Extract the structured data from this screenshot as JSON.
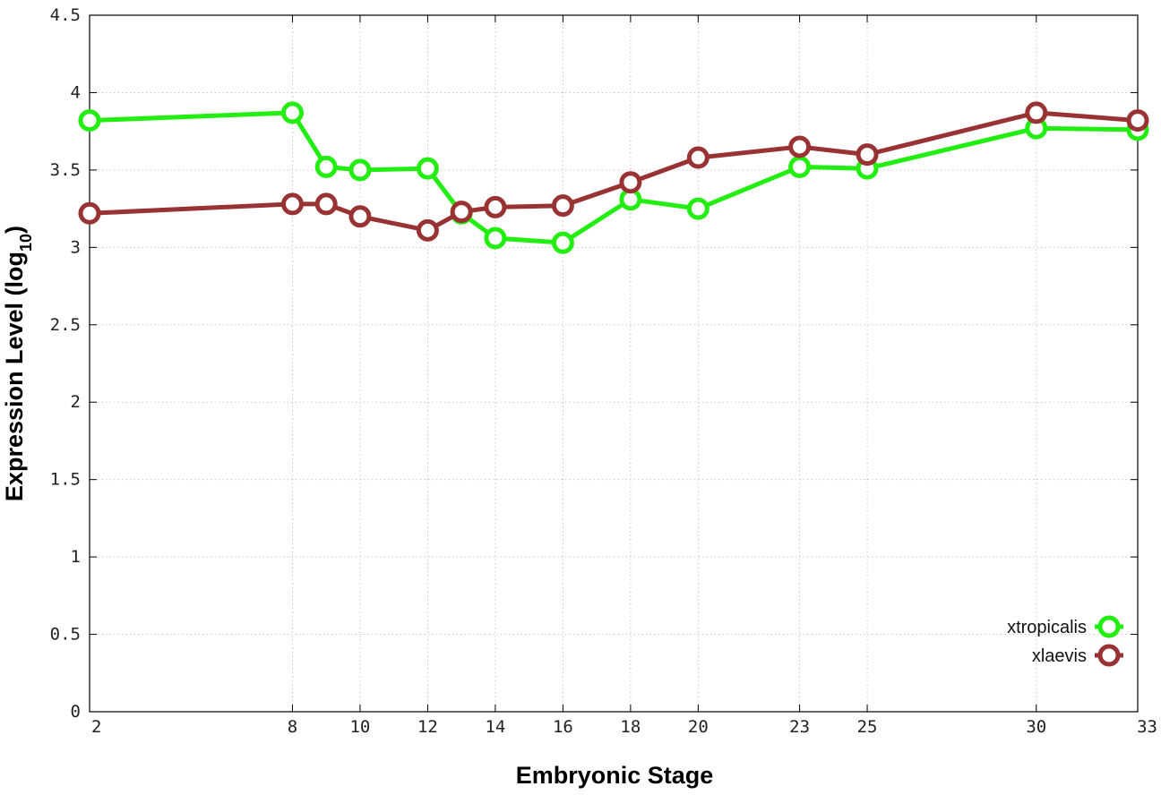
{
  "chart_data": {
    "type": "line",
    "title": "",
    "xlabel": "Embryonic Stage",
    "ylabel_main": "Expression Level (log",
    "ylabel_sub": "10",
    "ylabel_close": ")",
    "x_ticks": [
      2,
      8,
      10,
      12,
      14,
      16,
      18,
      20,
      23,
      25,
      30,
      33
    ],
    "y_ticks": [
      "0",
      "0.5",
      "1",
      "1.5",
      "2",
      "2.5",
      "3",
      "3.5",
      "4",
      "4.5"
    ],
    "xlim": [
      2,
      33
    ],
    "ylim": [
      0,
      4.5
    ],
    "grid": true,
    "legend_position": "bottom-right",
    "series": [
      {
        "name": "xtropicalis",
        "color": "#22ee11",
        "x": [
          2,
          8,
          9,
          10,
          12,
          13,
          14,
          16,
          18,
          20,
          23,
          25,
          30,
          33
        ],
        "y": [
          3.82,
          3.87,
          3.52,
          3.5,
          3.51,
          3.22,
          3.06,
          3.03,
          3.31,
          3.25,
          3.52,
          3.51,
          3.77,
          3.76
        ]
      },
      {
        "name": "xlaevis",
        "color": "#993333",
        "x": [
          2,
          8,
          9,
          10,
          12,
          13,
          14,
          16,
          18,
          20,
          23,
          25,
          30,
          33
        ],
        "y": [
          3.22,
          3.28,
          3.28,
          3.2,
          3.11,
          3.23,
          3.26,
          3.27,
          3.42,
          3.58,
          3.65,
          3.6,
          3.87,
          3.82
        ]
      }
    ]
  }
}
